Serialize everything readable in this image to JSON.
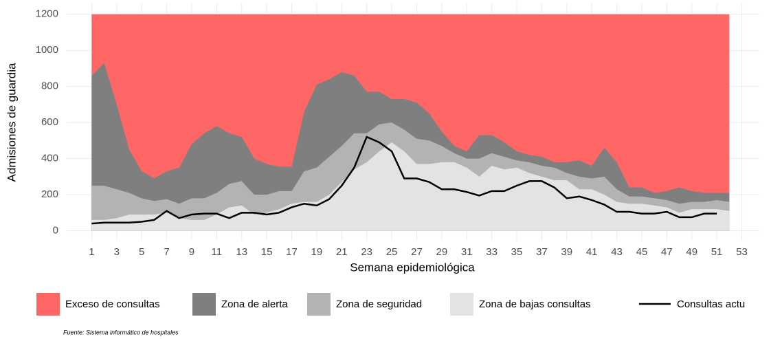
{
  "chart_data": {
    "type": "area",
    "x_label": "Semana epidemiológica",
    "y_label": "Admisiones de guardia",
    "source": "Fuente: Sistema informático de hospitales",
    "x": [
      1,
      2,
      3,
      4,
      5,
      6,
      7,
      8,
      9,
      10,
      11,
      12,
      13,
      14,
      15,
      16,
      17,
      18,
      19,
      20,
      21,
      22,
      23,
      24,
      25,
      26,
      27,
      28,
      29,
      30,
      31,
      32,
      33,
      34,
      35,
      36,
      37,
      38,
      39,
      40,
      41,
      42,
      43,
      44,
      45,
      46,
      47,
      48,
      49,
      50,
      51,
      52
    ],
    "series": [
      {
        "name": "Exceso de consultas",
        "color": "#ff6666",
        "kind": "area",
        "values": [
          1200,
          1200,
          1200,
          1200,
          1200,
          1200,
          1200,
          1200,
          1200,
          1200,
          1200,
          1200,
          1200,
          1200,
          1200,
          1200,
          1200,
          1200,
          1200,
          1200,
          1200,
          1200,
          1200,
          1200,
          1200,
          1200,
          1200,
          1200,
          1200,
          1200,
          1200,
          1200,
          1200,
          1200,
          1200,
          1200,
          1200,
          1200,
          1200,
          1200,
          1200,
          1200,
          1200,
          1200,
          1200,
          1200,
          1200,
          1200,
          1200,
          1200,
          1200,
          1200
        ]
      },
      {
        "name": "Zona de alerta",
        "color": "#7f7f7f",
        "kind": "area",
        "values": [
          860,
          930,
          700,
          450,
          330,
          290,
          330,
          350,
          480,
          540,
          580,
          540,
          520,
          400,
          370,
          355,
          355,
          660,
          810,
          840,
          880,
          860,
          770,
          770,
          730,
          730,
          710,
          650,
          550,
          470,
          440,
          530,
          530,
          490,
          440,
          420,
          410,
          380,
          380,
          390,
          360,
          460,
          380,
          240,
          240,
          210,
          220,
          240,
          220,
          210,
          210,
          210
        ]
      },
      {
        "name": "Zona de seguridad",
        "color": "#b3b3b3",
        "kind": "area",
        "values": [
          250,
          250,
          230,
          210,
          180,
          165,
          175,
          150,
          180,
          180,
          210,
          260,
          275,
          200,
          200,
          220,
          220,
          330,
          350,
          410,
          470,
          540,
          540,
          590,
          600,
          560,
          510,
          500,
          470,
          430,
          400,
          400,
          430,
          410,
          390,
          380,
          360,
          350,
          320,
          300,
          290,
          300,
          230,
          190,
          190,
          180,
          170,
          150,
          160,
          160,
          170,
          160
        ]
      },
      {
        "name": "Zona de bajas consultas",
        "color": "#e3e3e3",
        "kind": "area",
        "values": [
          60,
          60,
          70,
          90,
          90,
          90,
          100,
          70,
          60,
          60,
          90,
          130,
          140,
          90,
          100,
          120,
          150,
          160,
          160,
          200,
          270,
          340,
          380,
          440,
          490,
          440,
          370,
          370,
          380,
          380,
          350,
          300,
          360,
          340,
          350,
          320,
          300,
          280,
          280,
          230,
          230,
          200,
          160,
          150,
          150,
          140,
          130,
          100,
          120,
          120,
          120,
          110
        ]
      },
      {
        "name": "Consultas actu",
        "color": "#000000",
        "kind": "line",
        "values": [
          40,
          45,
          45,
          45,
          50,
          60,
          110,
          70,
          90,
          95,
          95,
          70,
          100,
          100,
          90,
          100,
          130,
          150,
          140,
          175,
          250,
          350,
          520,
          490,
          440,
          290,
          290,
          270,
          230,
          230,
          215,
          195,
          220,
          220,
          250,
          275,
          275,
          240,
          180,
          190,
          170,
          145,
          105,
          105,
          95,
          95,
          105,
          75,
          75,
          95,
          95,
          null
        ]
      }
    ],
    "xlim": [
      -1,
      54.4
    ],
    "ylim": [
      -55,
      1260
    ],
    "xticks": [
      1,
      3,
      5,
      7,
      9,
      11,
      13,
      15,
      17,
      19,
      21,
      23,
      25,
      27,
      29,
      31,
      33,
      35,
      37,
      39,
      41,
      43,
      45,
      47,
      49,
      51,
      53
    ],
    "yticks": [
      0,
      200,
      400,
      600,
      800,
      1000,
      1200
    ],
    "grid": true
  }
}
